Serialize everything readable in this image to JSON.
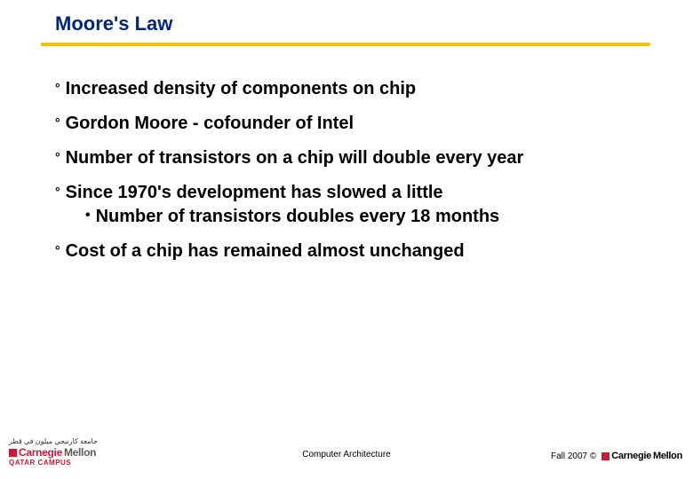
{
  "title": {
    "text": "Moore's Law",
    "color": "#002878",
    "fontsize": 22
  },
  "rule_color": "#f2c400",
  "bullet": {
    "marker": "°",
    "fontsize": 20,
    "text_color": "#000000",
    "items": [
      {
        "text": "Increased density of components on chip",
        "subs": []
      },
      {
        "text": "Gordon Moore - cofounder of Intel",
        "subs": []
      },
      {
        "text": "Number of transistors on a chip will double every year",
        "subs": []
      },
      {
        "text": "Since 1970's development has slowed a little",
        "subs": [
          {
            "text": "Number of transistors doubles every 18 months"
          }
        ]
      },
      {
        "text": "Cost of a chip has remained almost unchanged",
        "subs": []
      }
    ],
    "sub_marker": "•"
  },
  "footer": {
    "center": "Computer Architecture",
    "right_text": "Fall 2007 ©",
    "logo": {
      "arabic_line": "جامعة كارنيجي ميلون في قطر",
      "square_color": "#c41e3a",
      "carnegie": "Carnegie",
      "mellon": "Mellon",
      "carnegie_color": "#c41e3a",
      "mellon_color": "#5a5a5a",
      "campus": "QATAR CAMPUS",
      "campus_color": "#c41e3a"
    }
  }
}
